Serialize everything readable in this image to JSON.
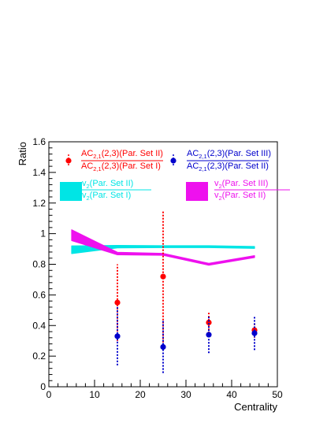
{
  "chart_data": {
    "type": "scatter",
    "xlabel": "Centrality",
    "ylabel": "Ratio",
    "xlim": [
      0,
      50
    ],
    "ylim": [
      0,
      1.6
    ],
    "x_ticks": [
      0,
      10,
      20,
      30,
      40,
      50
    ],
    "y_ticks": [
      0,
      0.2,
      0.4,
      0.6,
      0.8,
      1,
      1.2,
      1.4,
      1.6
    ],
    "colors": {
      "red": "#ff0000",
      "blue": "#0000cc",
      "cyan": "#00e5e5",
      "magenta": "#ee11ee"
    },
    "legend": [
      {
        "id": "red",
        "num_pre": "AC",
        "num_sub": "2,1",
        "num_post": "(2,3)(Par. Set II)",
        "den_pre": "AC",
        "den_sub": "2,1",
        "den_post": "(2,3)(Par. Set I)"
      },
      {
        "id": "blue",
        "num_pre": "AC",
        "num_sub": "2,1",
        "num_post": "(2,3)(Par. Set III)",
        "den_pre": "AC",
        "den_sub": "2,1",
        "den_post": "(2,3)(Par. Set II)"
      },
      {
        "id": "cyan",
        "num_pre": "v",
        "num_sub": "2",
        "num_post": "(Par. Set II)",
        "den_pre": "v",
        "den_sub": "2",
        "den_post": "(Par. Set I)"
      },
      {
        "id": "magenta",
        "num_pre": "v",
        "num_sub": "2",
        "num_post": "(Par. Set III)",
        "den_pre": "v",
        "den_sub": "2",
        "den_post": "(Par. Set II)"
      }
    ],
    "points": [
      {
        "series": "red",
        "x": [
          15,
          25,
          35,
          45
        ],
        "y": [
          0.55,
          0.72,
          0.42,
          0.37
        ],
        "err": [
          0.25,
          0.43,
          0.07,
          0.05
        ]
      },
      {
        "series": "blue",
        "x": [
          15,
          25,
          35,
          45
        ],
        "y": [
          0.33,
          0.26,
          0.34,
          0.35
        ],
        "err": [
          0.19,
          0.17,
          0.12,
          0.11
        ]
      }
    ],
    "bands": [
      {
        "series": "cyan",
        "x": [
          5,
          15,
          25,
          35,
          45
        ],
        "y": [
          0.895,
          0.915,
          0.915,
          0.915,
          0.91
        ],
        "width": [
          0.025,
          0.008,
          0.006,
          0.006,
          0.006
        ]
      },
      {
        "series": "magenta",
        "x": [
          5,
          15,
          25,
          35,
          45
        ],
        "y": [
          0.99,
          0.87,
          0.865,
          0.8,
          0.85
        ],
        "width": [
          0.035,
          0.008,
          0.006,
          0.006,
          0.006
        ]
      }
    ]
  }
}
